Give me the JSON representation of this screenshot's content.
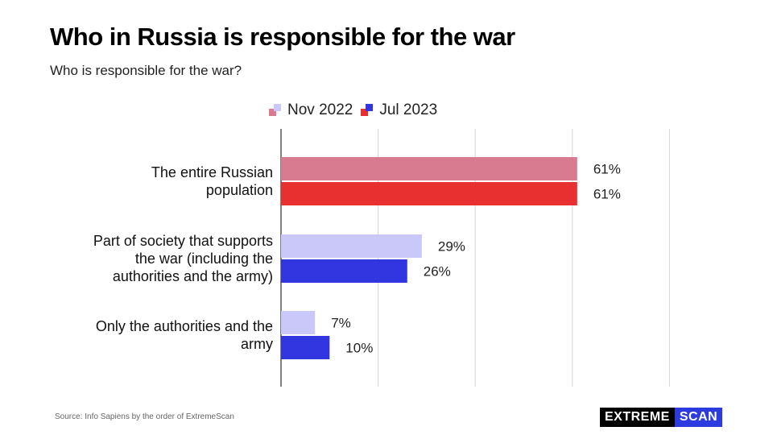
{
  "title": "Who in Russia is responsible for the war",
  "subtitle": "Who is responsible for the war?",
  "source": "Source: Info Sapiens by the order of ExtremeScan",
  "brand": {
    "part1": "EXTREME",
    "part2": "SCAN"
  },
  "legend": [
    {
      "label": "Nov 2022",
      "color_a": "#d97b90",
      "color_b": "#c9c8f8"
    },
    {
      "label": "Jul 2023",
      "color_a": "#e83030",
      "color_b": "#3136e0"
    }
  ],
  "chart_data": {
    "type": "bar",
    "orientation": "horizontal",
    "categories": [
      [
        "The entire Russian",
        "population"
      ],
      [
        "Part of society that supports",
        "the war (including the",
        "authorities and the army)"
      ],
      [
        "Only the authorities and the",
        "army"
      ]
    ],
    "series": [
      {
        "name": "Nov 2022",
        "values": [
          61,
          29,
          7
        ],
        "labels": [
          "61%",
          "29%",
          "7%"
        ],
        "colors": [
          "#d97b90",
          "#c9c8f8",
          "#c9c8f8"
        ]
      },
      {
        "name": "Jul 2023",
        "values": [
          61,
          26,
          10
        ],
        "labels": [
          "61%",
          "26%",
          "10%"
        ],
        "colors": [
          "#e83030",
          "#3136e0",
          "#3136e0"
        ]
      }
    ],
    "xlim": [
      0,
      80
    ],
    "grid": true,
    "legend_position": "top"
  }
}
